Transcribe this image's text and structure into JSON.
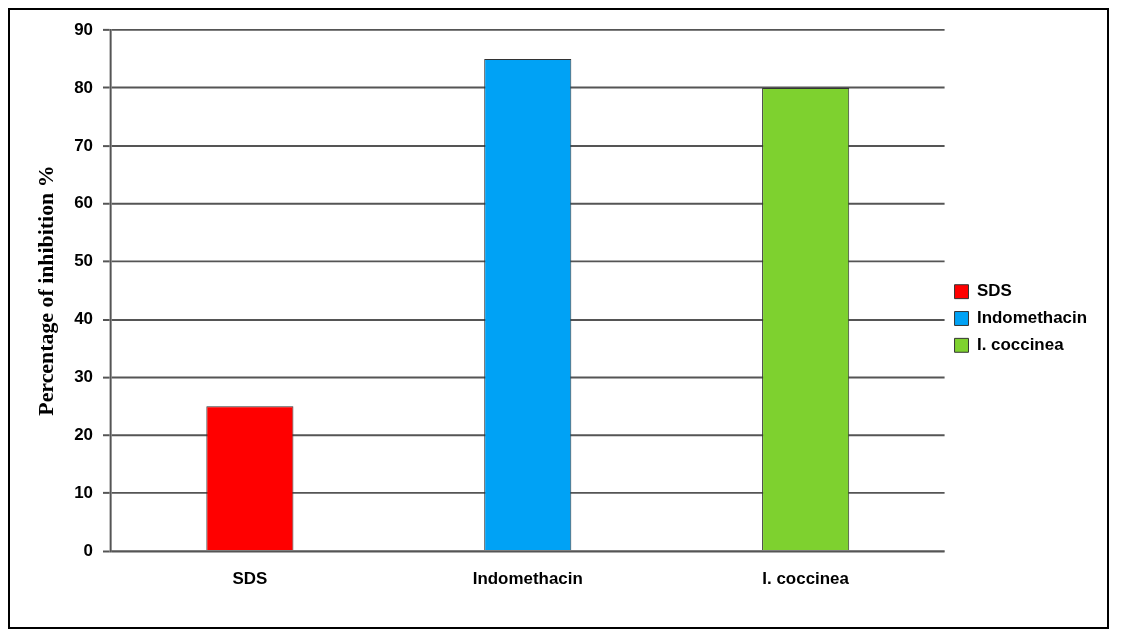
{
  "chart_data": {
    "type": "bar",
    "ylabel": "Percentage of inhibition %",
    "categories": [
      "SDS",
      "Indomethacin",
      "I. coccinea"
    ],
    "series": [
      {
        "name": "SDS",
        "color": "#ff0000",
        "values": [
          25,
          null,
          null
        ]
      },
      {
        "name": "Indomethacin",
        "color": "#00a2f5",
        "values": [
          null,
          85,
          null
        ]
      },
      {
        "name": "I. coccinea",
        "color": "#7ed12f",
        "values": [
          null,
          null,
          80
        ]
      }
    ],
    "ylim": [
      0,
      90
    ],
    "yticks": [
      0,
      10,
      20,
      30,
      40,
      50,
      60,
      70,
      80,
      90
    ],
    "grid": "y",
    "legend": "right"
  }
}
